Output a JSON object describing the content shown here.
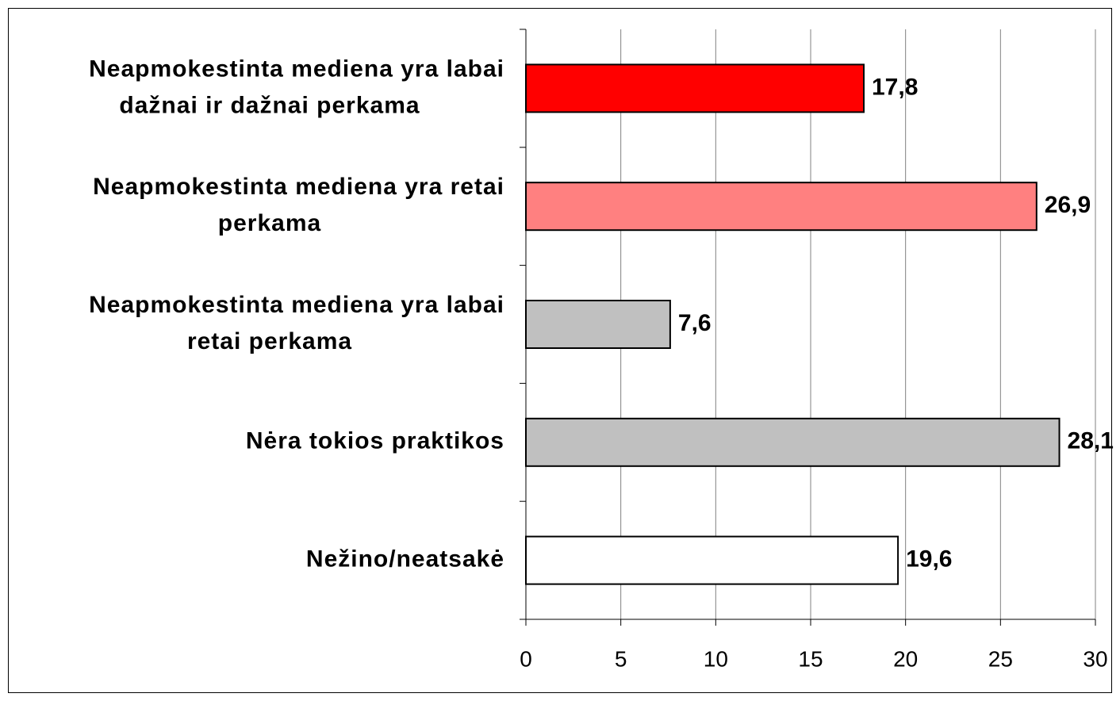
{
  "chart_data": {
    "type": "hbar",
    "categories": [
      [
        "Neapmokestinta mediena yra labai",
        "dažnai ir dažnai perkama"
      ],
      [
        "Neapmokestinta mediena yra retai",
        "perkama"
      ],
      [
        "Neapmokestinta mediena yra labai",
        "retai perkama"
      ],
      [
        "Nėra tokios praktikos"
      ],
      [
        "Nežino/neatsakė"
      ]
    ],
    "values": [
      17.8,
      26.9,
      7.6,
      28.1,
      19.6
    ],
    "value_labels": [
      "17,8",
      "26,9",
      "7,6",
      "28,1",
      "19,6"
    ],
    "colors": [
      "#ff0000",
      "#ff8080",
      "#c0c0c0",
      "#c0c0c0",
      "#ffffff"
    ],
    "xlim": [
      0,
      30
    ],
    "xticks": [
      0,
      5,
      10,
      15,
      20,
      25,
      30
    ],
    "grid": true
  }
}
